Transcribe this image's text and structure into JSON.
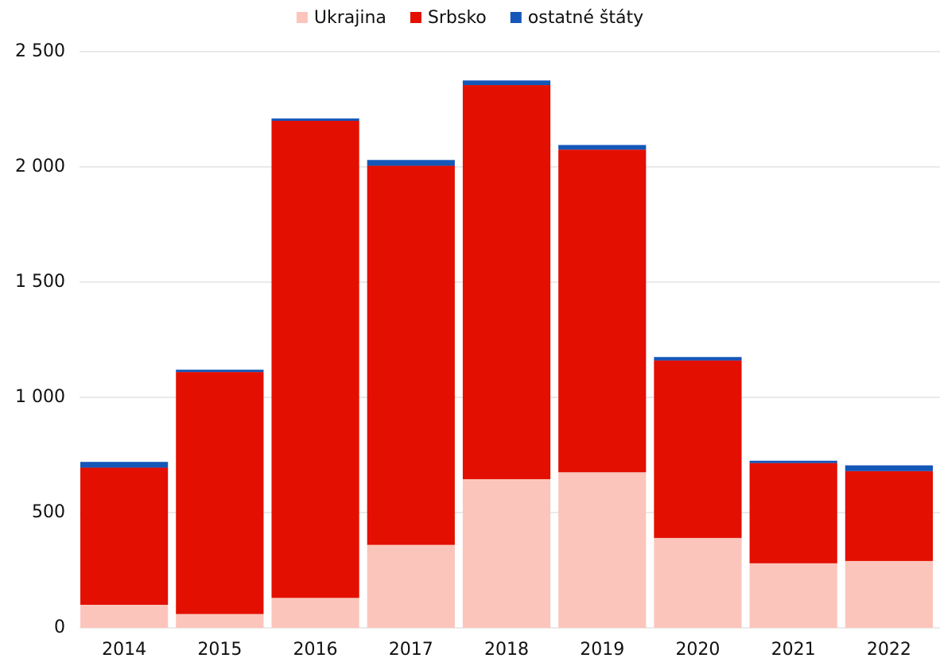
{
  "chart_data": {
    "type": "stacked_bar",
    "categories": [
      "2014",
      "2015",
      "2016",
      "2017",
      "2018",
      "2019",
      "2020",
      "2021",
      "2022"
    ],
    "series": [
      {
        "name": "Ukrajina",
        "color": "#fcc5bb",
        "values": [
          100,
          60,
          130,
          360,
          645,
          675,
          390,
          280,
          290
        ]
      },
      {
        "name": "Srbsko",
        "color": "#e30f00",
        "values": [
          595,
          1050,
          2070,
          1645,
          1710,
          1400,
          770,
          435,
          390
        ]
      },
      {
        "name": "ostatné štáty",
        "color": "#1457b8",
        "values": [
          25,
          10,
          10,
          25,
          20,
          20,
          15,
          10,
          25
        ]
      }
    ],
    "ylim": [
      0,
      2500
    ],
    "yticks": [
      0,
      500,
      {
        "value": 1000,
        "label": "1 000"
      },
      {
        "value": 1500,
        "label": "1 500"
      },
      {
        "value": 2000,
        "label": "2 000"
      },
      {
        "value": 2500,
        "label": "2 500"
      }
    ],
    "grid": true,
    "legend": "top"
  }
}
